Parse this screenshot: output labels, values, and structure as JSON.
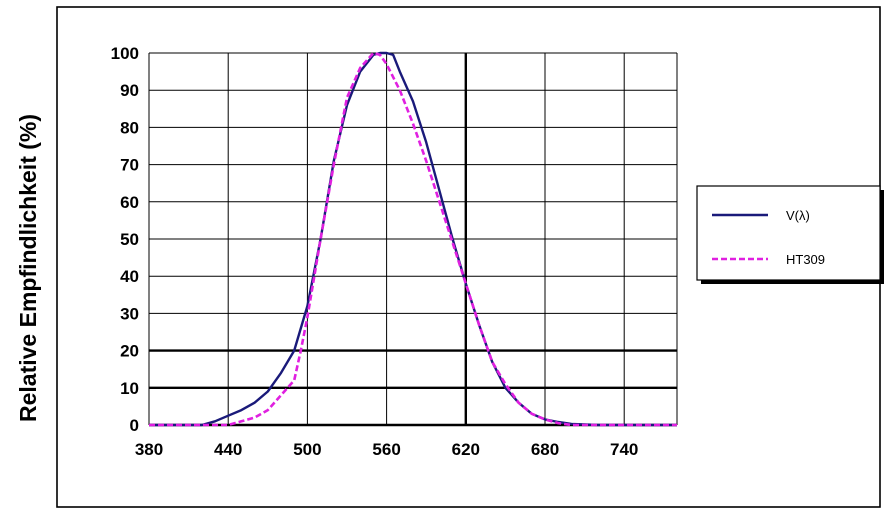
{
  "chart_data": {
    "type": "line",
    "title": "",
    "xlabel": "",
    "ylabel": "Relative Empfindlichkeit (%)",
    "xlim": [
      380,
      780
    ],
    "ylim": [
      0,
      100
    ],
    "x_ticks": [
      "380",
      "440",
      "500",
      "560",
      "620",
      "680",
      "740"
    ],
    "y_ticks": [
      "0",
      "10",
      "20",
      "30",
      "40",
      "50",
      "60",
      "70",
      "80",
      "90",
      "100"
    ],
    "grid": true,
    "legend_position": "right",
    "series": [
      {
        "name": "V(λ)",
        "color": "#1a1a7a",
        "style": "solid",
        "x": [
          380,
          420,
          430,
          440,
          450,
          460,
          470,
          480,
          490,
          500,
          510,
          520,
          530,
          540,
          550,
          555,
          560,
          565,
          570,
          580,
          590,
          600,
          610,
          620,
          630,
          640,
          650,
          660,
          670,
          680,
          690,
          700,
          720,
          780
        ],
        "y": [
          0,
          0,
          1,
          2.5,
          4,
          6,
          9,
          14,
          20,
          32,
          50,
          71,
          86,
          95,
          99.5,
          100,
          100,
          99.5,
          95,
          87,
          76,
          63,
          50,
          38,
          27,
          17,
          10,
          6,
          3,
          1.5,
          0.8,
          0.3,
          0,
          0
        ]
      },
      {
        "name": "HT309",
        "color": "#e020e0",
        "style": "dashed",
        "x": [
          380,
          440,
          450,
          460,
          470,
          480,
          490,
          495,
          500,
          510,
          520,
          530,
          540,
          550,
          555,
          560,
          570,
          580,
          590,
          600,
          610,
          620,
          630,
          640,
          650,
          660,
          670,
          680,
          690,
          700,
          720,
          780
        ],
        "y": [
          0,
          0,
          1,
          2,
          4,
          8,
          12,
          20,
          29,
          50,
          70,
          88,
          96,
          100,
          99.5,
          97,
          90,
          81,
          71,
          60,
          49,
          38,
          27,
          17,
          11,
          6,
          3,
          1.5,
          0.5,
          0,
          0,
          0
        ]
      }
    ]
  }
}
